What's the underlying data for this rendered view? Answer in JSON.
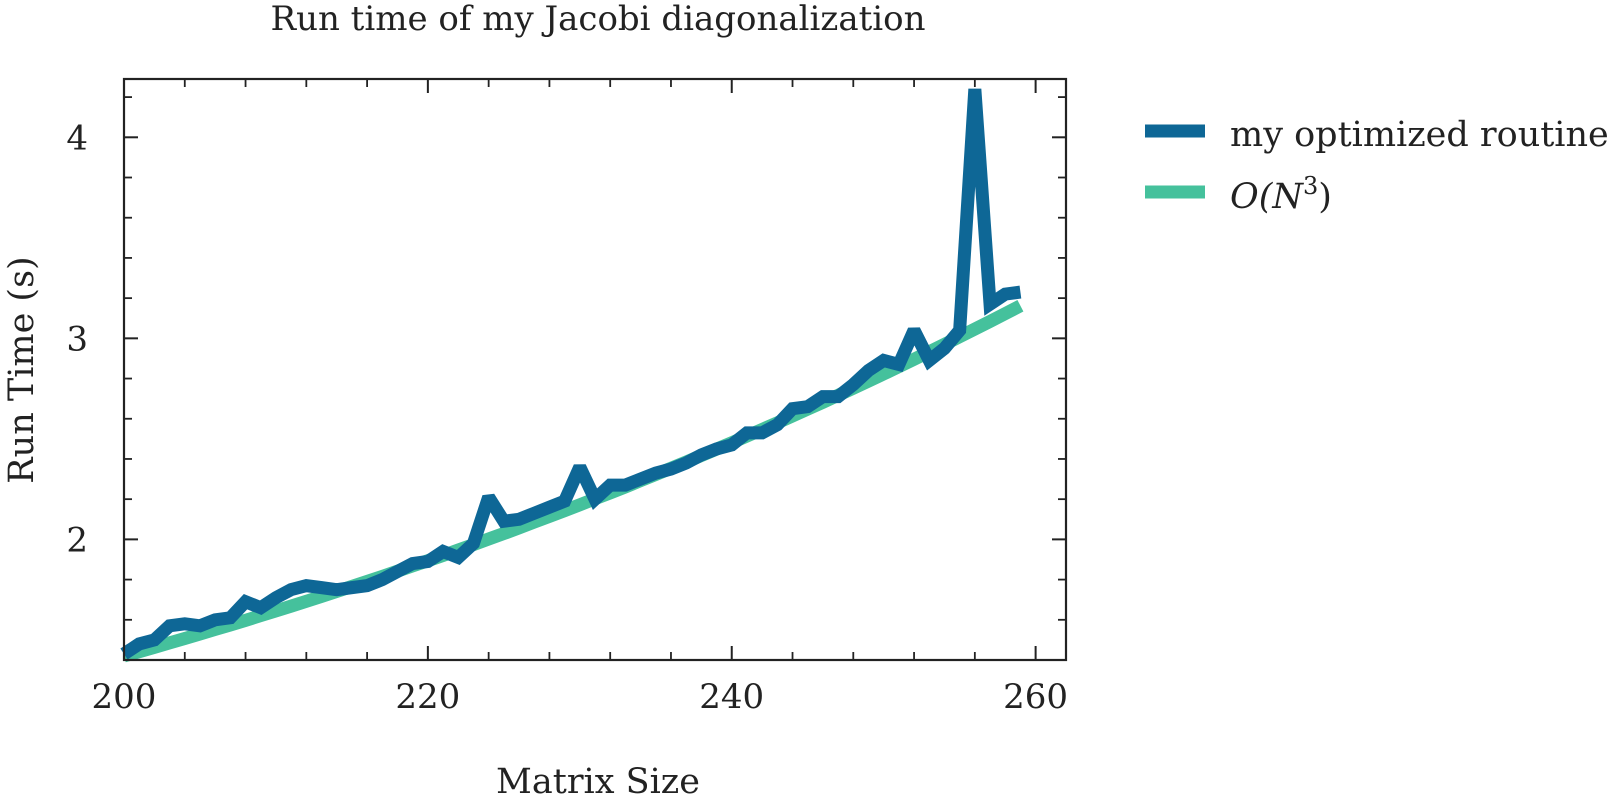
{
  "chart_data": {
    "type": "line",
    "title": "Run time of my Jacobi diagonalization",
    "xlabel": "Matrix Size",
    "ylabel": "Run Time (s)",
    "xlim": [
      200,
      259
    ],
    "ylim": [
      1.4,
      4.3
    ],
    "xticks": [
      200,
      220,
      240,
      260
    ],
    "xtick_labels": [
      "200",
      "220",
      "240",
      "260"
    ],
    "yticks": [
      2,
      3,
      4
    ],
    "ytick_labels": [
      "2",
      "3",
      "4"
    ],
    "legend_position": "outside-right",
    "grid": false,
    "x": [
      200,
      201,
      202,
      203,
      204,
      205,
      206,
      207,
      208,
      209,
      210,
      211,
      212,
      213,
      214,
      215,
      216,
      217,
      218,
      219,
      220,
      221,
      222,
      223,
      224,
      225,
      226,
      227,
      228,
      229,
      230,
      231,
      232,
      233,
      234,
      235,
      236,
      237,
      238,
      239,
      240,
      241,
      242,
      243,
      244,
      245,
      246,
      247,
      248,
      249,
      250,
      251,
      252,
      253,
      254,
      255,
      256,
      257,
      258,
      259
    ],
    "series": [
      {
        "name": "my optimized routine",
        "color": "#0e6796",
        "values": [
          1.43,
          1.48,
          1.5,
          1.57,
          1.58,
          1.57,
          1.6,
          1.61,
          1.69,
          1.66,
          1.71,
          1.75,
          1.77,
          1.76,
          1.75,
          1.76,
          1.77,
          1.8,
          1.84,
          1.88,
          1.89,
          1.94,
          1.91,
          1.98,
          2.21,
          2.09,
          2.1,
          2.13,
          2.16,
          2.19,
          2.36,
          2.2,
          2.27,
          2.27,
          2.3,
          2.33,
          2.35,
          2.38,
          2.42,
          2.45,
          2.47,
          2.53,
          2.53,
          2.57,
          2.65,
          2.66,
          2.71,
          2.71,
          2.77,
          2.84,
          2.89,
          2.87,
          3.04,
          2.89,
          2.95,
          3.04,
          4.24,
          3.17,
          3.22,
          3.23
        ]
      },
      {
        "name": "O(N³)",
        "name_main": "O(N",
        "name_sup": "3",
        "name_end": ")",
        "color": "#45c19c",
        "formula": "1.42*(N/200)^3",
        "values": [
          1.42,
          1.441,
          1.463,
          1.485,
          1.507,
          1.529,
          1.552,
          1.574,
          1.597,
          1.621,
          1.644,
          1.668,
          1.692,
          1.716,
          1.741,
          1.766,
          1.791,
          1.816,
          1.842,
          1.868,
          1.894,
          1.92,
          1.947,
          1.974,
          2.002,
          2.029,
          2.057,
          2.086,
          2.114,
          2.143,
          2.172,
          2.202,
          2.231,
          2.261,
          2.292,
          2.323,
          2.354,
          2.385,
          2.417,
          2.449,
          2.481,
          2.514,
          2.547,
          2.58,
          2.614,
          2.648,
          2.682,
          2.717,
          2.752,
          2.787,
          2.823,
          2.859,
          2.896,
          2.933,
          2.97,
          3.008,
          3.046,
          3.084,
          3.123,
          3.162
        ]
      }
    ]
  }
}
